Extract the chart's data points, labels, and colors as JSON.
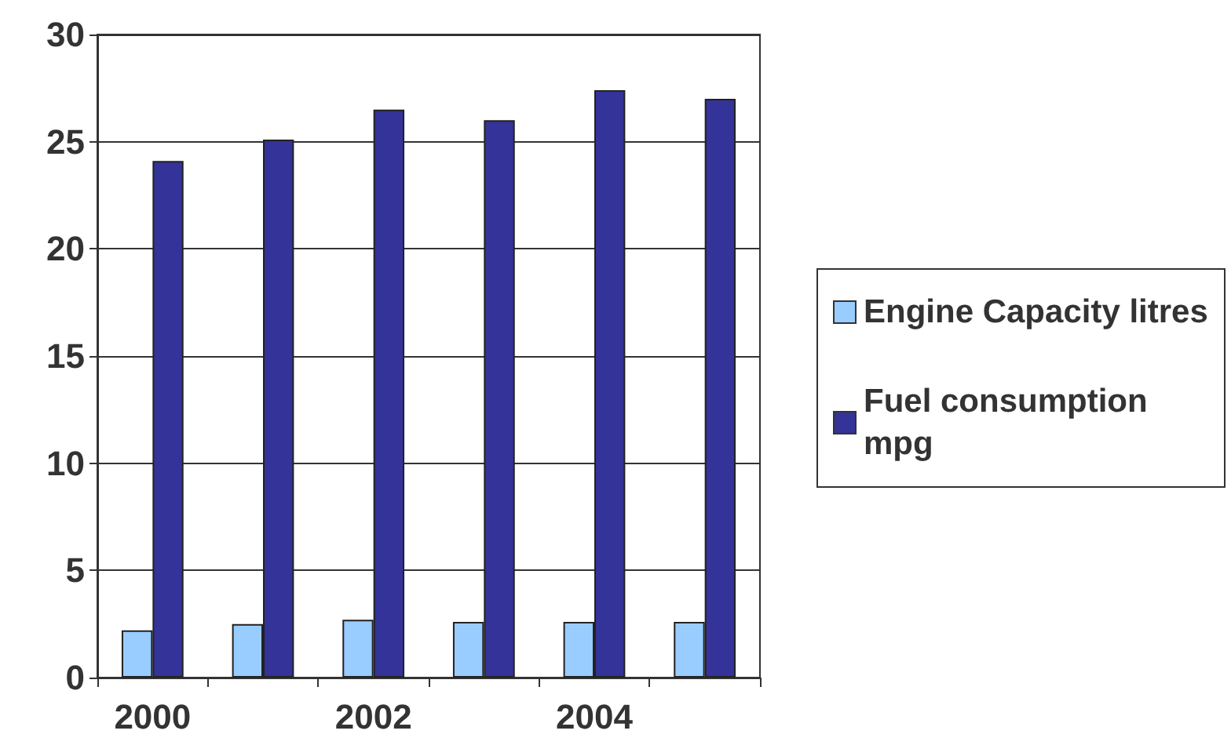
{
  "chart_data": {
    "type": "bar",
    "categories": [
      "2000",
      null,
      "2002",
      null,
      "2004",
      null
    ],
    "series": [
      {
        "name": "Engine Capacity litres",
        "color": "#99ccff",
        "values": [
          2.2,
          2.5,
          2.7,
          2.6,
          2.6,
          2.6
        ]
      },
      {
        "name": "Fuel consumption mpg",
        "color": "#333399",
        "values": [
          24.1,
          25.1,
          26.5,
          26.0,
          27.4,
          27.0
        ]
      }
    ],
    "ylim": [
      0,
      30
    ],
    "yticks": [
      0,
      5,
      10,
      15,
      20,
      25,
      30
    ],
    "grid": "y",
    "legend": "right"
  }
}
